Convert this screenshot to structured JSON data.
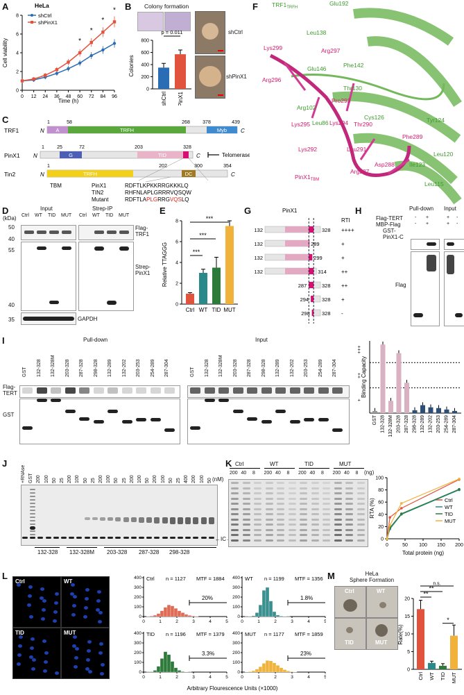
{
  "panels": {
    "A": {
      "label": "A",
      "cell_line": "HeLa",
      "legend": [
        "shCtrl",
        "shPinX1"
      ],
      "colors": [
        "#2a6db5",
        "#e2533d"
      ],
      "ylabel": "Cell viability",
      "xlabel": "Time (h)",
      "xticks": [
        "0",
        "12",
        "24",
        "36",
        "48",
        "60",
        "72",
        "84",
        "96"
      ],
      "yticks": [
        "0",
        "2",
        "4",
        "6",
        "8"
      ],
      "stars": [
        "*",
        "*",
        "*",
        "*"
      ]
    },
    "B": {
      "label": "B",
      "title": "Colony formation",
      "ylabel": "Colonies",
      "pvalue": "p = 0.011",
      "yticks": [
        "0",
        "200",
        "400",
        "600",
        "800"
      ],
      "categories": [
        "shCtrl",
        "shPinX1"
      ],
      "img_labels": [
        "shCtrl",
        "shPinX1"
      ]
    },
    "C": {
      "label": "C",
      "trf1": {
        "name": "TRF1",
        "n": "N",
        "c": "C",
        "nums": [
          "1",
          "58",
          "268",
          "378",
          "439"
        ],
        "domains": [
          "A",
          "TRFH",
          "Myb"
        ]
      },
      "pinx1": {
        "name": "PinX1",
        "n": "N",
        "c": "C",
        "nums": [
          "1",
          "25",
          "72",
          "203",
          "328"
        ],
        "domains": [
          "G",
          "TID"
        ],
        "telomerase": "Telomerase"
      },
      "tin2": {
        "name": "Tin2",
        "n": "N",
        "c": "C",
        "nums": [
          "1",
          "202",
          "300",
          "354"
        ],
        "domains": [
          "TRFH",
          "DC"
        ]
      },
      "tbm": {
        "label": "TBM",
        "rows": [
          "PinX1",
          "TIN2",
          "Mutant"
        ],
        "seqs": [
          "RDFTLKPKKRRGKKKLQ",
          "RHFNLAPLGRRRVQSQW"
        ],
        "mut_parts": [
          "RDFTLA",
          "PLG",
          "RRG",
          "VQS",
          "LQ"
        ]
      }
    },
    "D": {
      "label": "D",
      "kda": "(kDa)",
      "groups": [
        "Input",
        "Strep-IP"
      ],
      "lanes": [
        "Ctrl",
        "WT",
        "TID",
        "MUT"
      ],
      "markers": [
        "50",
        "40",
        "55",
        "40",
        "35"
      ],
      "right": [
        "Flag-\nTRF1",
        "Strep-\nPinX1",
        "GAPDH"
      ]
    },
    "E": {
      "label": "E",
      "ylabel": "Relative TTAGGG",
      "yticks": [
        "0",
        "2",
        "4",
        "6",
        "8"
      ],
      "categories": [
        "Ctrl",
        "WT",
        "TID",
        "MUT"
      ],
      "colors": [
        "#e2533d",
        "#2a8a8a",
        "#2d7a3a",
        "#f0b23a"
      ],
      "sig": [
        "***",
        "***",
        "***"
      ]
    },
    "F": {
      "label": "F",
      "residues_green": [
        "TRF1",
        "Leu138",
        "Glu192",
        "Glu146",
        "Phe142",
        "Thr130",
        "Tyr124",
        "Arg102",
        "Cys126",
        "Leu86",
        "Leu120",
        "Ile123",
        "Leu115"
      ],
      "trfh_sub": "TRFH",
      "residues_pink": [
        "Lys299",
        "Arg297",
        "Pro293",
        "Arg296",
        "Lys295",
        "Lys294",
        "Thr290",
        "Phe289",
        "Lys292",
        "Leu291",
        "Asp288",
        "Arg287",
        "PinX1"
      ],
      "tbm_sub": "TBM"
    },
    "G": {
      "label": "G",
      "title": "PinX1",
      "rti": "RTI",
      "rows": [
        {
          "start": "132",
          "end": "328",
          "rti": "++++"
        },
        {
          "start": "132",
          "end": "289",
          "rti": "+"
        },
        {
          "start": "132",
          "end": "299",
          "rti": "+"
        },
        {
          "start": "132",
          "end": "314",
          "rti": "++"
        },
        {
          "start": "287",
          "end": "328",
          "rti": "++"
        },
        {
          "start": "294",
          "end": "328",
          "rti": "+"
        },
        {
          "start": "298",
          "end": "328",
          "rti": "-"
        }
      ]
    },
    "H": {
      "label": "H",
      "groups": [
        "Pull-down",
        "Input"
      ],
      "rows": [
        "Flag-TERT",
        "MBP-Flag",
        "GST-\nPinX1-C"
      ],
      "signs": [
        "-",
        "+",
        "-",
        "+",
        "+",
        "-",
        "+",
        "-"
      ],
      "flag": "Flag"
    },
    "I": {
      "label": "I",
      "groups": [
        "Pull-down",
        "Input"
      ],
      "lanes": [
        "GST",
        "132-328",
        "132-328M",
        "203-328",
        "287-328",
        "298-328",
        "132-289",
        "132-202",
        "203-253",
        "254-289",
        "287-304"
      ],
      "left": [
        "Flag-\nTERT",
        "GST"
      ],
      "chart": {
        "ylabel": "Binding Capacity",
        "levels": [
          "+++",
          "++",
          "+"
        ],
        "categories": [
          "GST",
          "132-328",
          "132-328M",
          "203-328",
          "287-328",
          "298-328",
          "132-289",
          "132-202",
          "203-253",
          "254-289",
          "287-304"
        ]
      }
    },
    "J": {
      "label": "J",
      "lanes_top": [
        "+RNAse",
        "GST",
        "200",
        "100",
        "50",
        "25",
        "200",
        "100",
        "50",
        "25",
        "200",
        "100",
        "50",
        "25",
        "200",
        "100",
        "50",
        "200",
        "100",
        "50",
        "25",
        "400",
        "200",
        "100",
        "50"
      ],
      "unit": "(nM)",
      "groups": [
        "132-328",
        "132-328M",
        "203-328",
        "287-328",
        "298-328"
      ],
      "ic": "←IC→"
    },
    "K": {
      "label": "K",
      "groups": [
        "Ctrl",
        "WT",
        "TID",
        "MUT"
      ],
      "lanes": [
        "200",
        "40",
        "8",
        "200",
        "40",
        "8",
        "200",
        "40",
        "8",
        "200",
        "40",
        "8"
      ],
      "unit": "(ng)",
      "chart": {
        "ylabel": "RTA (%)",
        "xlabel": "Total protein (ng)",
        "xticks": [
          "0",
          "50",
          "100",
          "150",
          "200"
        ],
        "yticks": [
          "0",
          "20",
          "40",
          "60",
          "80",
          "100"
        ],
        "legend": [
          "Ctrl",
          "WT",
          "TID",
          "MUT"
        ],
        "colors": [
          "#e2533d",
          "#2a8a8a",
          "#2d7a3a",
          "#f0b23a"
        ]
      }
    },
    "L": {
      "label": "L",
      "imgs": [
        "Ctrl",
        "WT",
        "TID",
        "MUT"
      ],
      "hists": [
        {
          "name": "Ctrl",
          "n": "n = 1127",
          "mtf": "MTF = 1884",
          "pct": "20%",
          "color": "#e06b55"
        },
        {
          "name": "WT",
          "n": "n = 1199",
          "mtf": "MTF = 1356",
          "pct": "1.8%",
          "color": "#3a8f8f"
        },
        {
          "name": "TID",
          "n": "n = 1196",
          "mtf": "MTF = 1379",
          "pct": "3.3%",
          "color": "#2d7a3a"
        },
        {
          "name": "MUT",
          "n": "n = 1177",
          "mtf": "MTF = 1859",
          "pct": "23%",
          "color": "#f0b23a"
        }
      ],
      "yticks": [
        "0",
        "100",
        "200",
        "300",
        "400"
      ],
      "xticks": [
        "0",
        "1",
        "2",
        "3",
        "4",
        "5"
      ],
      "xlabel": "Arbitrary Flourescence Units (×1000)"
    },
    "M": {
      "label": "M",
      "title": "HeLa\nSphere Formation",
      "imgs": [
        "Ctrl",
        "WT",
        "TID",
        "MUT"
      ],
      "ylabel": "Rate(%)",
      "yticks": [
        "0",
        "5",
        "10",
        "15",
        "20"
      ],
      "categories": [
        "Ctrl",
        "WT",
        "TID",
        "MUT"
      ],
      "colors": [
        "#e2533d",
        "#2a8a8a",
        "#2d7a3a",
        "#f0b23a"
      ],
      "sig": [
        "n.s.",
        "**",
        "**",
        "*"
      ]
    }
  },
  "chart_data": [
    {
      "type": "line",
      "title": "HeLa",
      "xlabel": "Time (h)",
      "ylabel": "Cell viability",
      "x": [
        0,
        12,
        24,
        36,
        48,
        60,
        72,
        84,
        96
      ],
      "series": [
        {
          "name": "shCtrl",
          "values": [
            1.0,
            1.1,
            1.4,
            1.8,
            2.3,
            2.9,
            3.7,
            4.3,
            5.0
          ]
        },
        {
          "name": "shPinX1",
          "values": [
            1.0,
            1.2,
            1.6,
            2.2,
            3.0,
            4.0,
            5.1,
            6.2,
            7.3
          ]
        }
      ],
      "ylim": [
        0,
        8
      ]
    },
    {
      "type": "bar",
      "ylabel": "Colonies",
      "categories": [
        "shCtrl",
        "shPinX1"
      ],
      "values": [
        350,
        570
      ],
      "ylim": [
        0,
        800
      ]
    },
    {
      "type": "bar",
      "ylabel": "Relative TTAGGG",
      "categories": [
        "Ctrl",
        "WT",
        "TID",
        "MUT"
      ],
      "values": [
        1.0,
        3.0,
        3.5,
        7.5
      ],
      "ylim": [
        0,
        8
      ]
    },
    {
      "type": "bar",
      "ylabel": "Binding Capacity",
      "categories": [
        "GST",
        "132-328",
        "132-328M",
        "203-328",
        "287-328",
        "298-328",
        "132-289",
        "132-202",
        "203-253",
        "254-289",
        "287-304"
      ],
      "values": [
        0.3,
        9.5,
        1.7,
        8.3,
        4.2,
        0.4,
        1.1,
        0.8,
        0.7,
        0.5,
        0.3
      ],
      "ylim": [
        0,
        10
      ]
    },
    {
      "type": "line",
      "xlabel": "Total protein (ng)",
      "ylabel": "RTA (%)",
      "x": [
        0,
        8,
        40,
        200
      ],
      "series": [
        {
          "name": "Ctrl",
          "values": [
            0,
            35,
            50,
            97
          ]
        },
        {
          "name": "WT",
          "values": [
            0,
            16,
            40,
            80
          ]
        },
        {
          "name": "TID",
          "values": [
            0,
            18,
            41,
            81
          ]
        },
        {
          "name": "MUT",
          "values": [
            0,
            22,
            58,
            98
          ]
        }
      ],
      "ylim": [
        0,
        100
      ]
    },
    {
      "type": "bar",
      "ylabel": "Rate(%)",
      "categories": [
        "Ctrl",
        "WT",
        "TID",
        "MUT"
      ],
      "values": [
        17,
        1.8,
        1.0,
        9.5
      ],
      "ylim": [
        0,
        20
      ]
    }
  ]
}
